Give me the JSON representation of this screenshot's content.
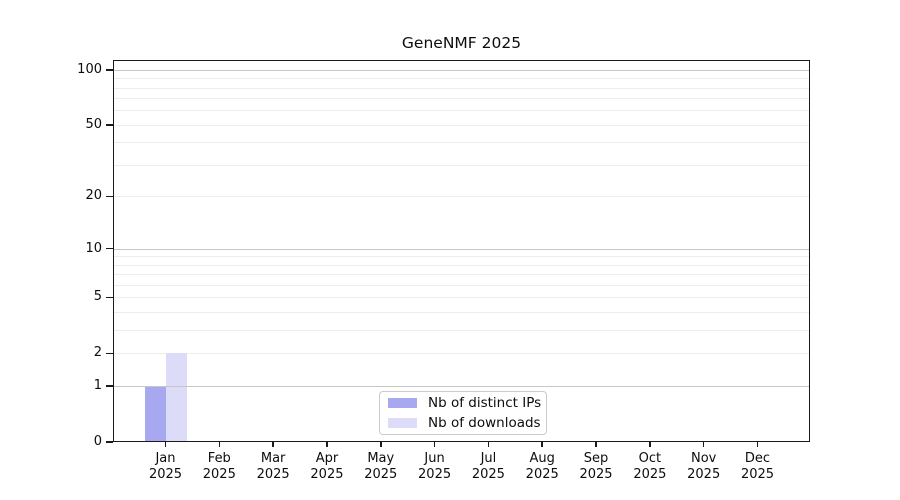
{
  "chart_data": {
    "type": "bar",
    "title": "GeneNMF 2025",
    "year": "2025",
    "categories": [
      "Jan",
      "Feb",
      "Mar",
      "Apr",
      "May",
      "Jun",
      "Jul",
      "Aug",
      "Sep",
      "Oct",
      "Nov",
      "Dec"
    ],
    "series": [
      {
        "name": "Nb of distinct IPs",
        "color": "#a8a8f0",
        "values": [
          1,
          0,
          0,
          0,
          0,
          0,
          0,
          0,
          0,
          0,
          0,
          0
        ]
      },
      {
        "name": "Nb of downloads",
        "color": "#dcdcf8",
        "values": [
          2,
          0,
          0,
          0,
          0,
          0,
          0,
          0,
          0,
          0,
          0,
          0
        ]
      }
    ],
    "yscale": "log1p",
    "yticks": [
      0,
      1,
      2,
      5,
      10,
      20,
      50,
      100
    ],
    "ylim": [
      0,
      113
    ],
    "grid": "both",
    "grid_major_values": [
      1,
      10,
      100
    ],
    "grid_minor_values": [
      2,
      3,
      4,
      5,
      6,
      7,
      8,
      9,
      20,
      30,
      40,
      50,
      60,
      70,
      80,
      90
    ],
    "legend_position": "lower center"
  }
}
